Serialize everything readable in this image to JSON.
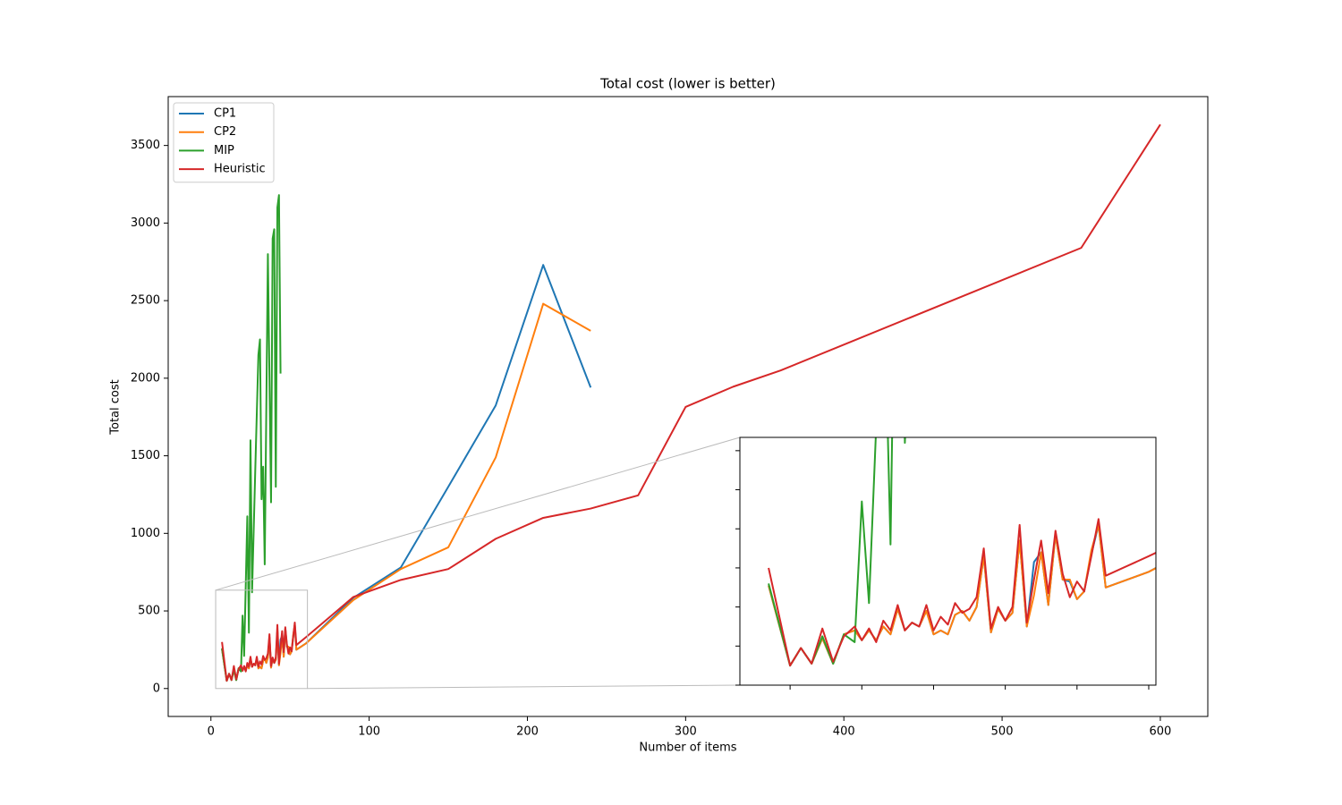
{
  "chart_data": {
    "type": "line",
    "title": "Total cost (lower is better)",
    "xlabel": "Number of items",
    "ylabel": "Total cost",
    "xlim": [
      -27,
      630
    ],
    "ylim": [
      -180,
      3815
    ],
    "xticks": [
      0,
      100,
      200,
      300,
      400,
      500,
      600
    ],
    "yticks": [
      0,
      500,
      1000,
      1500,
      2000,
      2500,
      3000,
      3500
    ],
    "legend": "upper left",
    "series": [
      {
        "name": "CP1",
        "color": "#1f77b4",
        "x": [
          7,
          10,
          11.5,
          13,
          14.5,
          16,
          17.5,
          19,
          20,
          21,
          22,
          23,
          24,
          25,
          26,
          27,
          28,
          29,
          30,
          31,
          32,
          33,
          34,
          35,
          36,
          37,
          38,
          39,
          40,
          41,
          42,
          43,
          44,
          45,
          46,
          47,
          48,
          49,
          50,
          51,
          52,
          53,
          54,
          60,
          90,
          120,
          150,
          180,
          210,
          240
        ],
        "values": [
          255,
          50,
          95,
          55,
          120,
          55,
          130,
          140,
          115,
          140,
          115,
          150,
          130,
          195,
          140,
          160,
          150,
          190,
          130,
          140,
          130,
          180,
          190,
          165,
          200,
          330,
          135,
          195,
          165,
          185,
          370,
          150,
          315,
          340,
          205,
          385,
          270,
          265,
          220,
          240,
          335,
          410,
          250,
          290,
          585,
          780,
          1300,
          1825,
          2730,
          1940
        ]
      },
      {
        "name": "CP2",
        "color": "#ff7f0e",
        "x": [
          7,
          10,
          11.5,
          13,
          14.5,
          16,
          17.5,
          19,
          20,
          21,
          22,
          23,
          24,
          25,
          26,
          27,
          28,
          29,
          30,
          31,
          32,
          33,
          34,
          35,
          36,
          37,
          38,
          39,
          40,
          41,
          42,
          43,
          44,
          45,
          46,
          47,
          48,
          49,
          50,
          51,
          52,
          53,
          54,
          60,
          90,
          120,
          150,
          180,
          210,
          240
        ],
        "values": [
          255,
          50,
          95,
          55,
          120,
          55,
          130,
          140,
          115,
          140,
          115,
          150,
          130,
          195,
          140,
          160,
          150,
          190,
          130,
          140,
          130,
          180,
          190,
          165,
          200,
          330,
          135,
          195,
          165,
          185,
          370,
          150,
          230,
          340,
          205,
          385,
          270,
          270,
          220,
          240,
          345,
          410,
          250,
          290,
          570,
          770,
          910,
          1490,
          2480,
          2305
        ]
      },
      {
        "name": "MIP",
        "color": "#2ca02c",
        "x": [
          7,
          10,
          11.5,
          13,
          14.5,
          16,
          17.5,
          19,
          20,
          21,
          23,
          24,
          25,
          26,
          28,
          30,
          31,
          32,
          33,
          34,
          36,
          38,
          39,
          40,
          41,
          42,
          43,
          44
        ],
        "values": [
          260,
          50,
          95,
          55,
          125,
          55,
          130,
          110,
          470,
          210,
          1110,
          360,
          1600,
          620,
          1400,
          2150,
          2250,
          1220,
          1430,
          800,
          2800,
          1200,
          2900,
          2960,
          1300,
          3100,
          3180,
          2030
        ]
      },
      {
        "name": "Heuristic",
        "color": "#d62728",
        "x": [
          7,
          10,
          11.5,
          13,
          14.5,
          16,
          17.5,
          19,
          20,
          21,
          22,
          23,
          24,
          25,
          26,
          27,
          28,
          29,
          30,
          31,
          32,
          33,
          34,
          35,
          36,
          37,
          38,
          39,
          40,
          41,
          42,
          43,
          44,
          45,
          46,
          47,
          48,
          49,
          50,
          51,
          52,
          53,
          54,
          60,
          90,
          120,
          150,
          180,
          210,
          240,
          270,
          300,
          330,
          360,
          550,
          600
        ],
        "values": [
          300,
          50,
          95,
          55,
          145,
          60,
          125,
          150,
          115,
          145,
          110,
          165,
          140,
          205,
          140,
          160,
          150,
          205,
          140,
          175,
          155,
          210,
          185,
          195,
          225,
          350,
          145,
          200,
          165,
          200,
          410,
          160,
          270,
          370,
          235,
          395,
          285,
          225,
          265,
          240,
          330,
          425,
          280,
          330,
          590,
          700,
          770,
          965,
          1100,
          1160,
          1245,
          1815,
          1945,
          2050,
          2840,
          3635
        ]
      }
    ],
    "inset": {
      "xlim": [
        3,
        61
      ],
      "ylim": [
        0,
        634
      ],
      "xticks": [
        10,
        20,
        30,
        40,
        50,
        60
      ],
      "yticks": [
        0,
        100,
        200,
        300,
        400,
        500,
        600
      ]
    }
  }
}
